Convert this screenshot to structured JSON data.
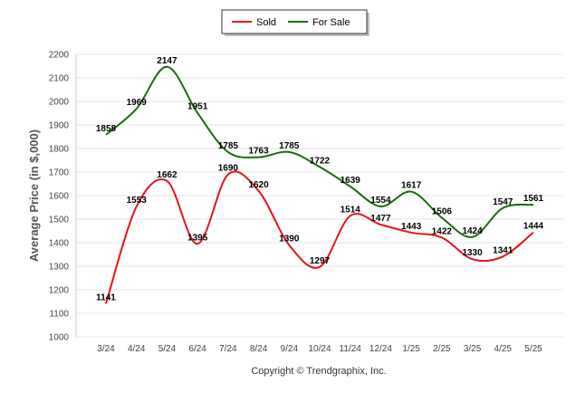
{
  "legend": {
    "sold_label": "Sold",
    "for_sale_label": "For Sale"
  },
  "footer": "Copyright © Trendgraphix, Inc.",
  "colors": {
    "sold": "#e8121b",
    "for_sale": "#1c6b0f",
    "grid": "#e6e6e6"
  },
  "chart_data": {
    "type": "line",
    "title": "",
    "xlabel": "",
    "ylabel": "Average Price (in $,000)",
    "ylim": [
      1000,
      2200
    ],
    "yticks": [
      1000,
      1100,
      1200,
      1300,
      1400,
      1500,
      1600,
      1700,
      1800,
      1900,
      2000,
      2100,
      2200
    ],
    "grid": true,
    "legend_position": "top-center",
    "categories": [
      "3/24",
      "4/24",
      "5/24",
      "6/24",
      "7/24",
      "8/24",
      "9/24",
      "10/24",
      "11/24",
      "12/24",
      "1/25",
      "2/25",
      "3/25",
      "4/25",
      "5/25"
    ],
    "series": [
      {
        "name": "Sold",
        "values": [
          1141,
          1553,
          1662,
          1395,
          1690,
          1620,
          1390,
          1297,
          1514,
          1477,
          1443,
          1422,
          1330,
          1341,
          1444
        ]
      },
      {
        "name": "For Sale",
        "values": [
          1858,
          1969,
          2147,
          1951,
          1785,
          1763,
          1785,
          1722,
          1639,
          1554,
          1617,
          1506,
          1424,
          1547,
          1561
        ]
      }
    ]
  }
}
